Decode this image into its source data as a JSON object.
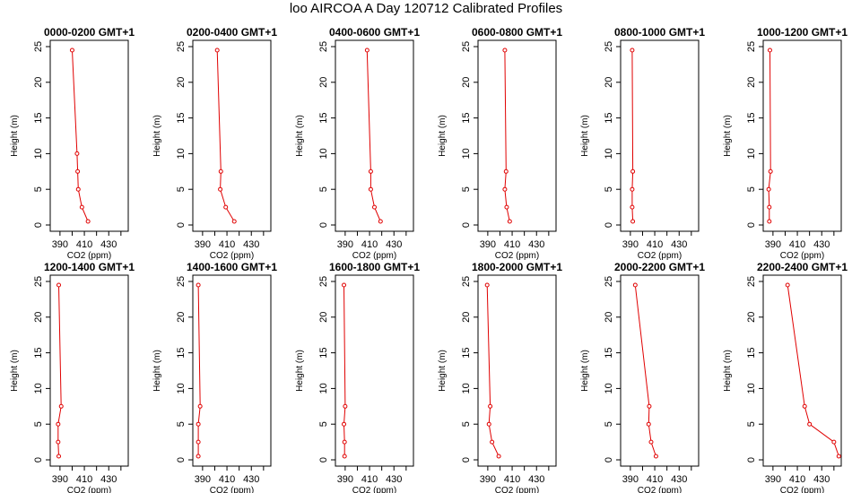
{
  "figure_title": "loo AIRCOA A  Day 120712  Calibrated Profiles",
  "colors": {
    "series": "#e00000",
    "axis": "#000000",
    "background": "#ffffff"
  },
  "chart_data": [
    {
      "type": "line",
      "title": "0000-0200 GMT+1",
      "xlabel": "CO2 (ppm)",
      "ylabel": "Height (m)",
      "xlim": [
        382,
        446
      ],
      "ylim": [
        0,
        25
      ],
      "xticks": [
        390,
        410,
        430
      ],
      "yticks": [
        0,
        5,
        10,
        15,
        20,
        25
      ],
      "series": [
        {
          "x": [
            413,
            408,
            405,
            404.5,
            404,
            400
          ],
          "y": [
            0.5,
            2.5,
            5,
            7.5,
            10,
            24.5
          ]
        }
      ]
    },
    {
      "type": "line",
      "title": "0200-0400 GMT+1",
      "xlabel": "CO2 (ppm)",
      "ylabel": "Height (m)",
      "xlim": [
        382,
        446
      ],
      "ylim": [
        0,
        25
      ],
      "xticks": [
        390,
        410,
        430
      ],
      "yticks": [
        0,
        5,
        10,
        15,
        20,
        25
      ],
      "series": [
        {
          "x": [
            416,
            409,
            404.5,
            405,
            402
          ],
          "y": [
            0.5,
            2.5,
            5,
            7.5,
            24.5
          ]
        }
      ]
    },
    {
      "type": "line",
      "title": "0400-0600 GMT+1",
      "xlabel": "CO2 (ppm)",
      "ylabel": "Height (m)",
      "xlim": [
        382,
        446
      ],
      "ylim": [
        0,
        25
      ],
      "xticks": [
        390,
        410,
        430
      ],
      "yticks": [
        0,
        5,
        10,
        15,
        20,
        25
      ],
      "series": [
        {
          "x": [
            419,
            414,
            411,
            411,
            408
          ],
          "y": [
            0.5,
            2.5,
            5,
            7.5,
            24.5
          ]
        }
      ]
    },
    {
      "type": "line",
      "title": "0600-0800 GMT+1",
      "xlabel": "CO2 (ppm)",
      "ylabel": "Height (m)",
      "xlim": [
        382,
        446
      ],
      "ylim": [
        0,
        25
      ],
      "xticks": [
        390,
        410,
        430
      ],
      "yticks": [
        0,
        5,
        10,
        15,
        20,
        25
      ],
      "series": [
        {
          "x": [
            408,
            405.5,
            404,
            405,
            404
          ],
          "y": [
            0.5,
            2.5,
            5,
            7.5,
            24.5
          ]
        }
      ]
    },
    {
      "type": "line",
      "title": "0800-1000 GMT+1",
      "xlabel": "CO2 (ppm)",
      "ylabel": "Height (m)",
      "xlim": [
        382,
        446
      ],
      "ylim": [
        0,
        25
      ],
      "xticks": [
        390,
        410,
        430
      ],
      "yticks": [
        0,
        5,
        10,
        15,
        20,
        25
      ],
      "series": [
        {
          "x": [
            392,
            391.5,
            391.5,
            392,
            391.5
          ],
          "y": [
            0.5,
            2.5,
            5,
            7.5,
            24.5
          ]
        }
      ]
    },
    {
      "type": "line",
      "title": "1000-1200 GMT+1",
      "xlabel": "CO2 (ppm)",
      "ylabel": "Height (m)",
      "xlim": [
        382,
        446
      ],
      "ylim": [
        0,
        25
      ],
      "xticks": [
        390,
        410,
        430
      ],
      "yticks": [
        0,
        5,
        10,
        15,
        20,
        25
      ],
      "series": [
        {
          "x": [
            387,
            387,
            386.5,
            388,
            387.5
          ],
          "y": [
            0.5,
            2.5,
            5,
            7.5,
            24.5
          ]
        }
      ]
    },
    {
      "type": "line",
      "title": "1200-1400 GMT+1",
      "xlabel": "CO2 (ppm)",
      "ylabel": "Height (m)",
      "xlim": [
        382,
        446
      ],
      "ylim": [
        0,
        25
      ],
      "xticks": [
        390,
        410,
        430
      ],
      "yticks": [
        0,
        5,
        10,
        15,
        20,
        25
      ],
      "series": [
        {
          "x": [
            389,
            388.5,
            388.5,
            391,
            389
          ],
          "y": [
            0.5,
            2.5,
            5,
            7.5,
            24.5
          ]
        }
      ]
    },
    {
      "type": "line",
      "title": "1400-1600 GMT+1",
      "xlabel": "CO2 (ppm)",
      "ylabel": "Height (m)",
      "xlim": [
        382,
        446
      ],
      "ylim": [
        0,
        25
      ],
      "xticks": [
        390,
        410,
        430
      ],
      "yticks": [
        0,
        5,
        10,
        15,
        20,
        25
      ],
      "series": [
        {
          "x": [
            386.5,
            386.5,
            386.5,
            388,
            386.5
          ],
          "y": [
            0.5,
            2.5,
            5,
            7.5,
            24.5
          ]
        }
      ]
    },
    {
      "type": "line",
      "title": "1600-1800 GMT+1",
      "xlabel": "CO2 (ppm)",
      "ylabel": "Height (m)",
      "xlim": [
        382,
        446
      ],
      "ylim": [
        0,
        25
      ],
      "xticks": [
        390,
        410,
        430
      ],
      "yticks": [
        0,
        5,
        10,
        15,
        20,
        25
      ],
      "series": [
        {
          "x": [
            389.5,
            389.5,
            389,
            390,
            389
          ],
          "y": [
            0.5,
            2.5,
            5,
            7.5,
            24.5
          ]
        }
      ]
    },
    {
      "type": "line",
      "title": "1800-2000 GMT+1",
      "xlabel": "CO2 (ppm)",
      "ylabel": "Height (m)",
      "xlim": [
        382,
        446
      ],
      "ylim": [
        0,
        25
      ],
      "xticks": [
        390,
        410,
        430
      ],
      "yticks": [
        0,
        5,
        10,
        15,
        20,
        25
      ],
      "series": [
        {
          "x": [
            399,
            393.5,
            391,
            392,
            389.5
          ],
          "y": [
            0.5,
            2.5,
            5,
            7.5,
            24.5
          ]
        }
      ]
    },
    {
      "type": "line",
      "title": "2000-2200 GMT+1",
      "xlabel": "CO2 (ppm)",
      "ylabel": "Height (m)",
      "xlim": [
        382,
        446
      ],
      "ylim": [
        0,
        25
      ],
      "xticks": [
        390,
        410,
        430
      ],
      "yticks": [
        0,
        5,
        10,
        15,
        20,
        25
      ],
      "series": [
        {
          "x": [
            411,
            407,
            405,
            405.5,
            394
          ],
          "y": [
            0.5,
            2.5,
            5,
            7.5,
            24.5
          ]
        }
      ]
    },
    {
      "type": "line",
      "title": "2200-2400 GMT+1",
      "xlabel": "CO2 (ppm)",
      "ylabel": "Height (m)",
      "xlim": [
        382,
        446
      ],
      "ylim": [
        0,
        25
      ],
      "xticks": [
        390,
        410,
        430
      ],
      "yticks": [
        0,
        5,
        10,
        15,
        20,
        25
      ],
      "series": [
        {
          "x": [
            444,
            440,
            420,
            416,
            402
          ],
          "y": [
            0.5,
            2.5,
            5,
            7.5,
            24.5
          ]
        }
      ]
    }
  ]
}
